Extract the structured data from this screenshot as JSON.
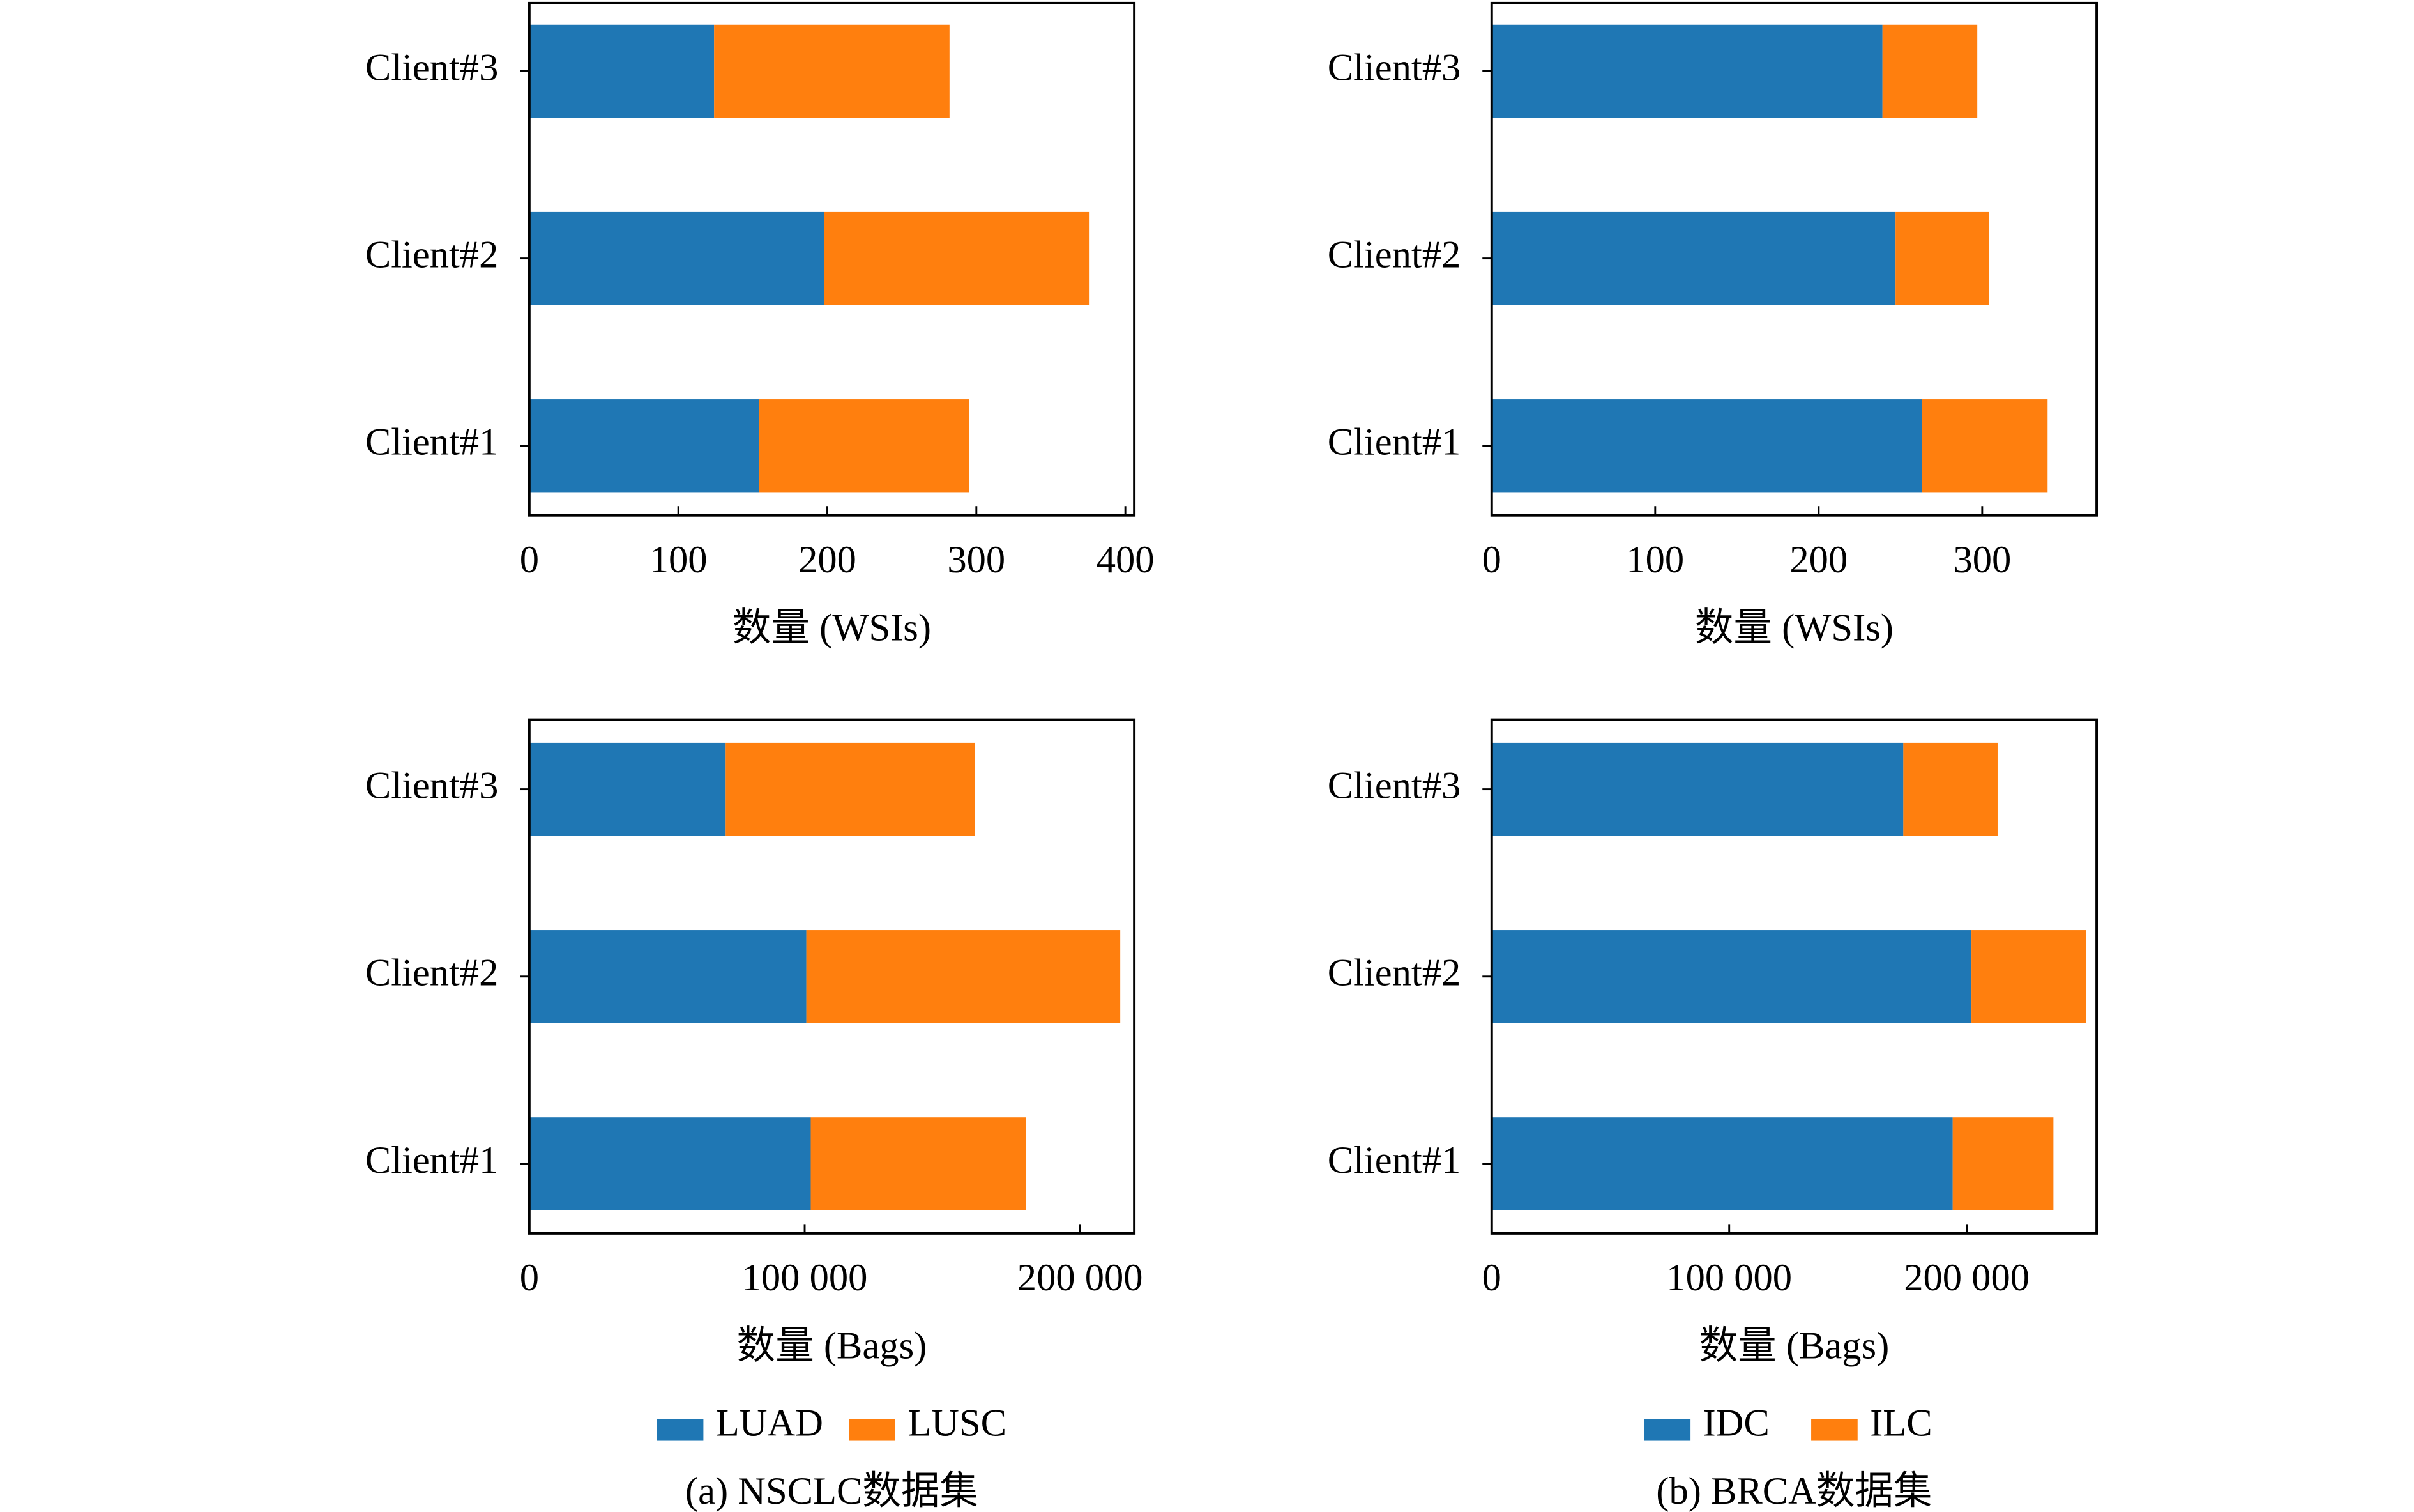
{
  "chart_data": [
    {
      "type": "bar",
      "orientation": "horizontal",
      "stacked": true,
      "categories": [
        "Client#1",
        "Client#2",
        "Client#3"
      ],
      "series": [
        {
          "color": "#1f77b4",
          "values": [
            154,
            198,
            124
          ]
        },
        {
          "color": "#ff7f0e",
          "values": [
            141,
            178,
            158
          ]
        }
      ],
      "xlabel": "数量 (WSIs)",
      "xlim": [
        0,
        406
      ],
      "xticks": [
        0,
        100,
        200,
        300,
        400
      ]
    },
    {
      "type": "bar",
      "orientation": "horizontal",
      "stacked": true,
      "categories": [
        "Client#1",
        "Client#2",
        "Client#3"
      ],
      "series": [
        {
          "color": "#1f77b4",
          "values": [
            263,
            247,
            239
          ]
        },
        {
          "color": "#ff7f0e",
          "values": [
            77,
            57,
            58
          ]
        }
      ],
      "xlabel": "数量 (WSIs)",
      "xlim": [
        0,
        370
      ],
      "xticks": [
        0,
        100,
        200,
        300
      ]
    },
    {
      "type": "bar",
      "orientation": "horizontal",
      "stacked": true,
      "categories": [
        "Client#1",
        "Client#2",
        "Client#3"
      ],
      "series": [
        {
          "name": "LUAD",
          "color": "#1f77b4",
          "values": [
            102200,
            100600,
            71300
          ]
        },
        {
          "name": "LUSC",
          "color": "#ff7f0e",
          "values": [
            78100,
            114000,
            90500
          ]
        }
      ],
      "xlabel": "数量 (Bags)",
      "xlim": [
        0,
        219700
      ],
      "xticks": [
        0,
        {
          "value": 100000,
          "label": "100 000"
        },
        {
          "value": 200000,
          "label": "200 000"
        }
      ],
      "caption": "(a) NSCLC数据集"
    },
    {
      "type": "bar",
      "orientation": "horizontal",
      "stacked": true,
      "categories": [
        "Client#1",
        "Client#2",
        "Client#3"
      ],
      "series": [
        {
          "name": "IDC",
          "color": "#1f77b4",
          "values": [
            194100,
            202000,
            173300
          ]
        },
        {
          "name": "ILC",
          "color": "#ff7f0e",
          "values": [
            42400,
            48200,
            39700
          ]
        }
      ],
      "xlabel": "数量 (Bags)",
      "xlim": [
        0,
        254700
      ],
      "xticks": [
        0,
        {
          "value": 100000,
          "label": "100 000"
        },
        {
          "value": 200000,
          "label": "200 000"
        }
      ],
      "caption": "(b) BRCA数据集"
    }
  ]
}
